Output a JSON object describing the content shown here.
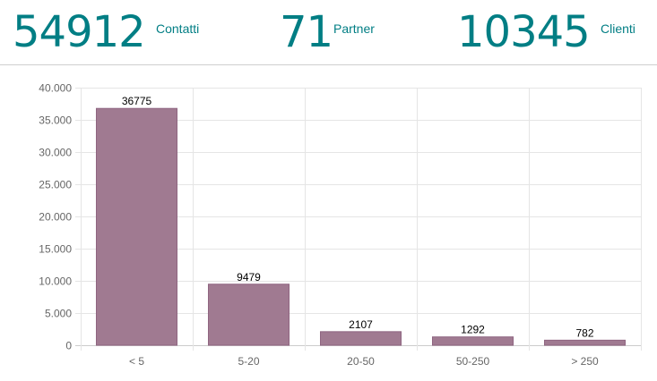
{
  "stats": {
    "contacts": {
      "value": "54912",
      "label": "Contatti"
    },
    "partners": {
      "value": "71",
      "label": "Partner"
    },
    "clients": {
      "value": "10345",
      "label": "Clienti"
    }
  },
  "colors": {
    "accent": "#017e84",
    "bar_fill": "#a07a91",
    "bar_stroke": "#8f6581",
    "grid": "#e5e5e5"
  },
  "chart_data": {
    "type": "bar",
    "categories": [
      "< 5",
      "5-20",
      "20-50",
      "50-250",
      "> 250"
    ],
    "values": [
      36775,
      9479,
      2107,
      1292,
      782
    ],
    "data_labels": [
      "36775",
      "9479",
      "2107",
      "1292",
      "782"
    ],
    "y_ticks": [
      0,
      5000,
      10000,
      15000,
      20000,
      25000,
      30000,
      35000,
      40000
    ],
    "y_tick_labels": [
      "0",
      "5.000",
      "10.000",
      "15.000",
      "20.000",
      "25.000",
      "30.000",
      "35.000",
      "40.000"
    ],
    "ylim": [
      0,
      40000
    ],
    "grid": true,
    "legend": "none"
  }
}
